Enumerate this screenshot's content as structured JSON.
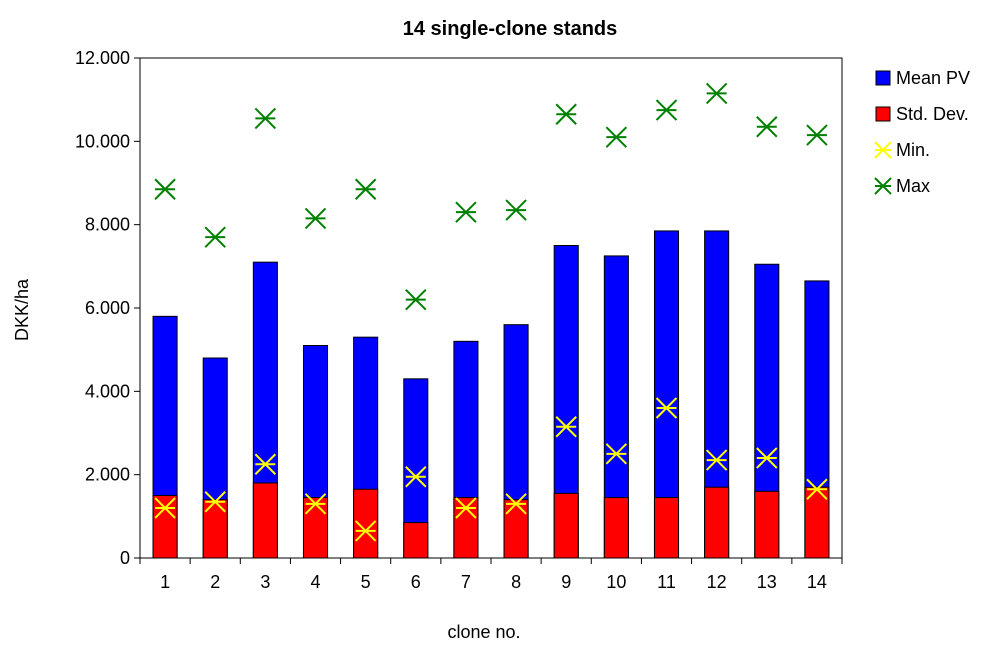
{
  "chart_data": {
    "type": "bar",
    "title": "14 single-clone stands",
    "xlabel": "clone no.",
    "ylabel": "DKK/ha",
    "ylim": [
      0,
      12000
    ],
    "yticks": [
      0,
      2000,
      4000,
      6000,
      8000,
      10000,
      12000
    ],
    "ytick_labels": [
      "0",
      "2.000",
      "4.000",
      "6.000",
      "8.000",
      "10.000",
      "12.000"
    ],
    "grid": false,
    "legend_position": "right",
    "categories": [
      "1",
      "2",
      "3",
      "4",
      "5",
      "6",
      "7",
      "8",
      "9",
      "10",
      "11",
      "12",
      "13",
      "14"
    ],
    "series": [
      {
        "name": "Mean PV",
        "kind": "bar",
        "color": "#0000ff",
        "values": [
          5800,
          4800,
          7100,
          5100,
          5300,
          4300,
          5200,
          5600,
          7500,
          7250,
          7850,
          7850,
          7050,
          6650
        ]
      },
      {
        "name": "Std. Dev.",
        "kind": "bar",
        "color": "#ff0000",
        "values": [
          1500,
          1400,
          1800,
          1450,
          1650,
          850,
          1450,
          1400,
          1550,
          1450,
          1450,
          1700,
          1600,
          1700
        ]
      },
      {
        "name": "Min.",
        "kind": "marker",
        "color": "#ffff00",
        "values": [
          1200,
          1350,
          2250,
          1300,
          650,
          1950,
          1200,
          1300,
          3150,
          2500,
          3600,
          2350,
          2400,
          1650
        ]
      },
      {
        "name": "Max",
        "kind": "marker",
        "color": "#008000",
        "values": [
          8850,
          7700,
          10550,
          8150,
          8850,
          6200,
          8300,
          8350,
          10650,
          10100,
          10750,
          11150,
          10350,
          10150
        ]
      }
    ]
  }
}
